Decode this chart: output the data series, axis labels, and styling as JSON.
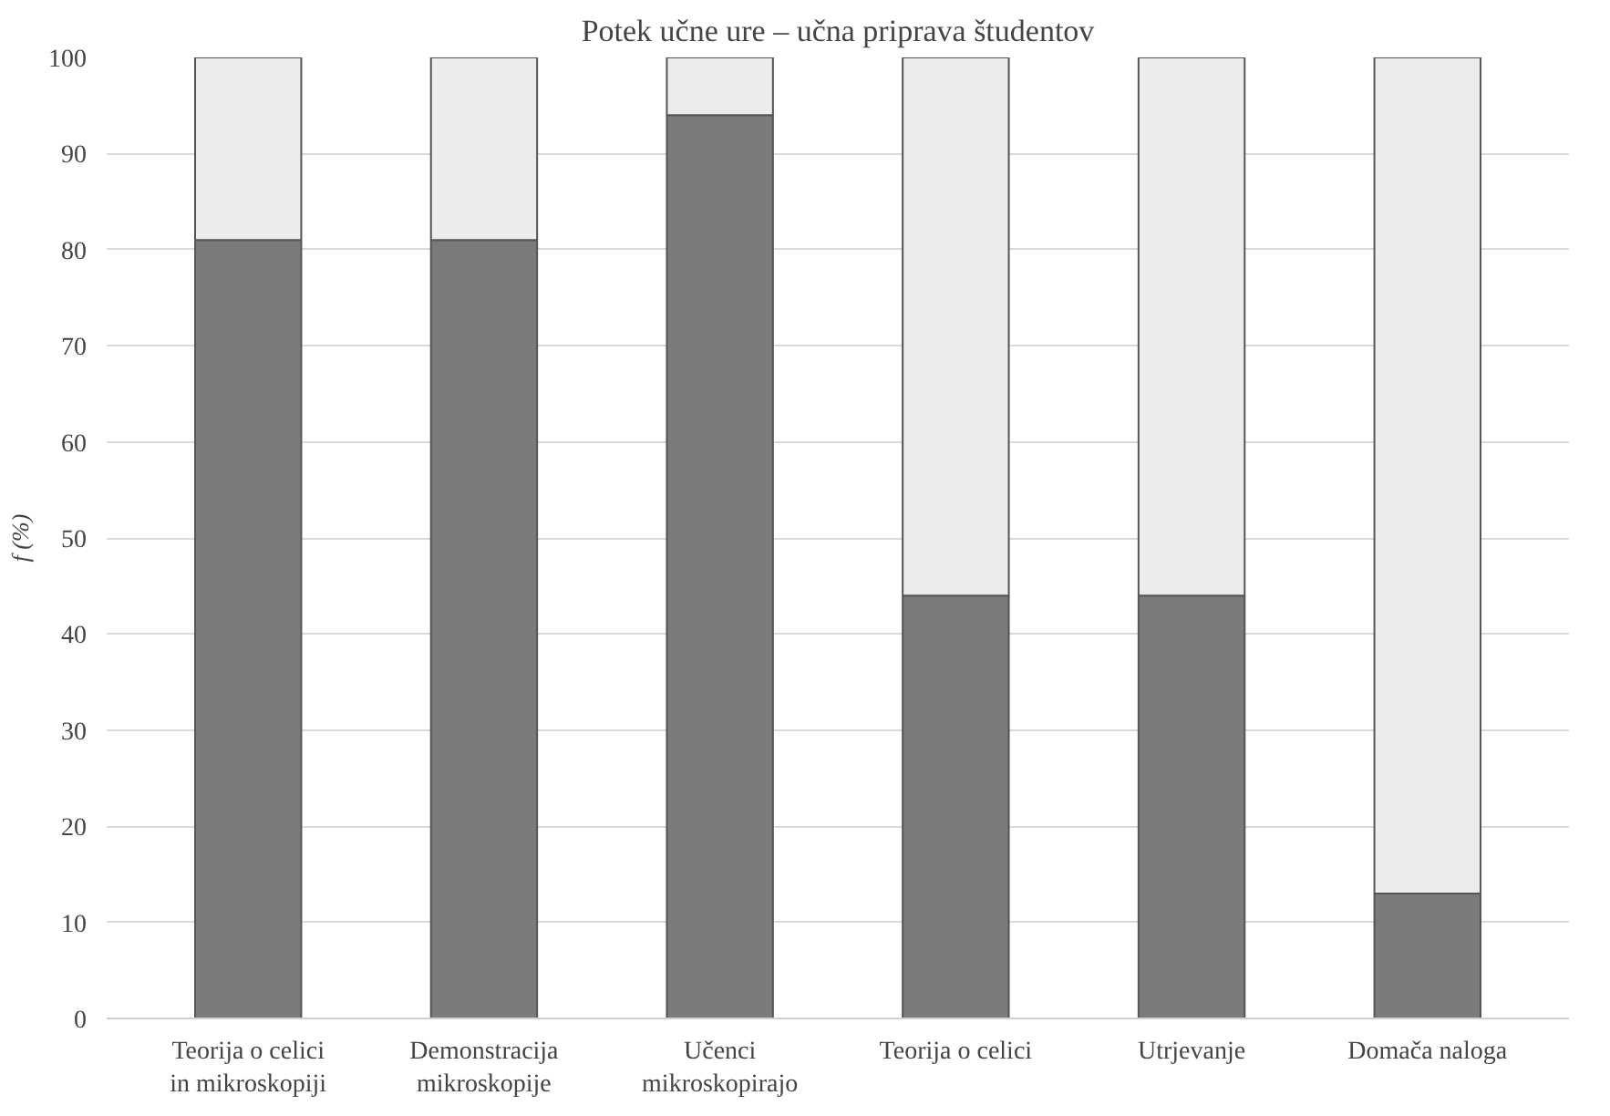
{
  "chart_data": {
    "type": "bar",
    "stacked": true,
    "title": "Potek učne ure – učna priprava študentov",
    "ylabel": "f (%)",
    "categories": [
      "Teorija o celici in mikroskopiji",
      "Demonstracija mikroskopije",
      "Učenci mikroskopirajo",
      "Teorija o celici",
      "Utrjevanje",
      "Domača naloga"
    ],
    "series": [
      {
        "color": "#7b7b7b",
        "values": [
          81,
          81,
          94,
          44,
          44,
          13
        ]
      },
      {
        "color": "#ececec",
        "values": [
          19,
          19,
          6,
          56,
          56,
          87
        ]
      }
    ],
    "ylim": [
      0,
      100
    ],
    "yticks": [
      0,
      10,
      20,
      30,
      40,
      50,
      60,
      70,
      80,
      90,
      100
    ],
    "grid": "y"
  }
}
